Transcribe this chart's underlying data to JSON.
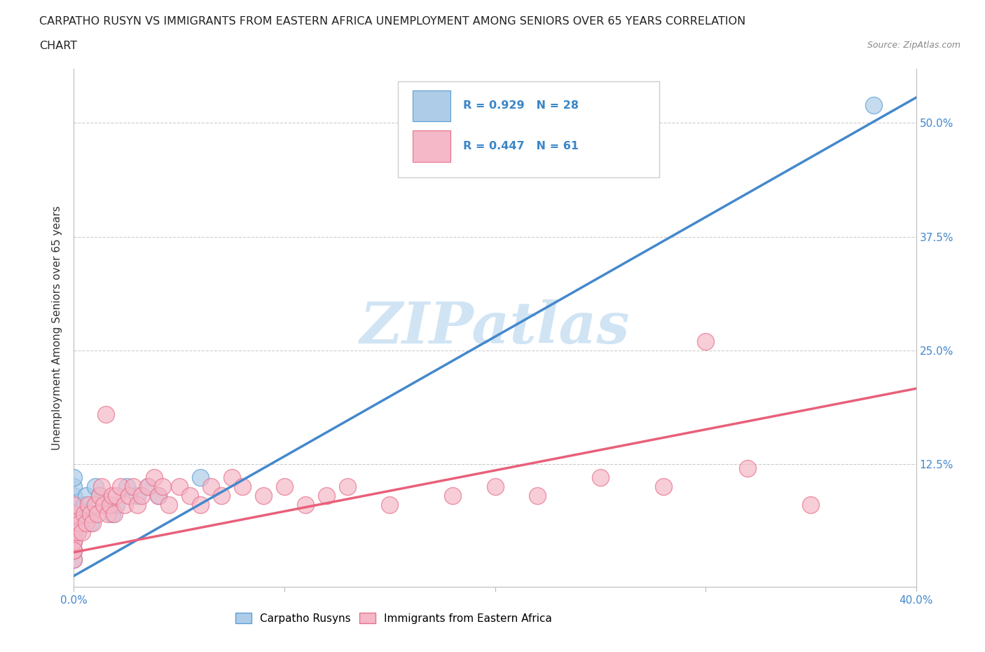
{
  "title_line1": "CARPATHO RUSYN VS IMMIGRANTS FROM EASTERN AFRICA UNEMPLOYMENT AMONG SENIORS OVER 65 YEARS CORRELATION",
  "title_line2": "CHART",
  "source_text": "Source: ZipAtlas.com",
  "ylabel": "Unemployment Among Seniors over 65 years",
  "xlim": [
    0.0,
    0.4
  ],
  "ylim": [
    -0.01,
    0.56
  ],
  "ytick_values": [
    0.125,
    0.25,
    0.375,
    0.5
  ],
  "ytick_right_labels": [
    "12.5%",
    "25.0%",
    "37.5%",
    "50.0%"
  ],
  "blue_R": 0.929,
  "blue_N": 28,
  "pink_R": 0.447,
  "pink_N": 61,
  "blue_fill_color": "#aecce8",
  "pink_fill_color": "#f4b8c8",
  "blue_edge_color": "#5a9fd4",
  "pink_edge_color": "#e8708a",
  "blue_line_color": "#4488cc",
  "pink_line_color": "#e8607a",
  "legend_label_blue": "Carpatho Rusyns",
  "legend_label_pink": "Immigrants from Eastern Africa",
  "watermark": "ZIPatlas",
  "watermark_color": "#d0e4f4",
  "blue_trend_x": [
    0.0,
    0.4
  ],
  "blue_trend_y": [
    0.002,
    0.528
  ],
  "pink_trend_x": [
    0.0,
    0.4
  ],
  "pink_trend_y": [
    0.028,
    0.208
  ],
  "blue_scatter_x": [
    0.0,
    0.0,
    0.0,
    0.0,
    0.0,
    0.0,
    0.0,
    0.0,
    0.0,
    0.0,
    0.002,
    0.003,
    0.004,
    0.005,
    0.006,
    0.007,
    0.008,
    0.01,
    0.012,
    0.015,
    0.018,
    0.02,
    0.025,
    0.03,
    0.035,
    0.04,
    0.06,
    0.38
  ],
  "blue_scatter_y": [
    0.02,
    0.03,
    0.04,
    0.05,
    0.06,
    0.07,
    0.08,
    0.09,
    0.1,
    0.11,
    0.05,
    0.06,
    0.07,
    0.08,
    0.09,
    0.07,
    0.06,
    0.1,
    0.09,
    0.08,
    0.07,
    0.08,
    0.1,
    0.09,
    0.1,
    0.09,
    0.11,
    0.52
  ],
  "pink_scatter_x": [
    0.0,
    0.0,
    0.0,
    0.0,
    0.0,
    0.0,
    0.0,
    0.0,
    0.0,
    0.0,
    0.002,
    0.003,
    0.004,
    0.005,
    0.006,
    0.007,
    0.008,
    0.009,
    0.01,
    0.011,
    0.012,
    0.013,
    0.014,
    0.015,
    0.016,
    0.017,
    0.018,
    0.019,
    0.02,
    0.022,
    0.024,
    0.026,
    0.028,
    0.03,
    0.032,
    0.035,
    0.038,
    0.04,
    0.042,
    0.045,
    0.05,
    0.055,
    0.06,
    0.065,
    0.07,
    0.075,
    0.08,
    0.09,
    0.1,
    0.11,
    0.12,
    0.13,
    0.15,
    0.18,
    0.2,
    0.22,
    0.25,
    0.28,
    0.3,
    0.32,
    0.35
  ],
  "pink_scatter_y": [
    0.02,
    0.03,
    0.04,
    0.05,
    0.06,
    0.07,
    0.08,
    0.05,
    0.04,
    0.03,
    0.05,
    0.06,
    0.05,
    0.07,
    0.06,
    0.08,
    0.07,
    0.06,
    0.08,
    0.07,
    0.09,
    0.1,
    0.08,
    0.18,
    0.07,
    0.08,
    0.09,
    0.07,
    0.09,
    0.1,
    0.08,
    0.09,
    0.1,
    0.08,
    0.09,
    0.1,
    0.11,
    0.09,
    0.1,
    0.08,
    0.1,
    0.09,
    0.08,
    0.1,
    0.09,
    0.11,
    0.1,
    0.09,
    0.1,
    0.08,
    0.09,
    0.1,
    0.08,
    0.09,
    0.1,
    0.09,
    0.11,
    0.1,
    0.26,
    0.12,
    0.08
  ]
}
